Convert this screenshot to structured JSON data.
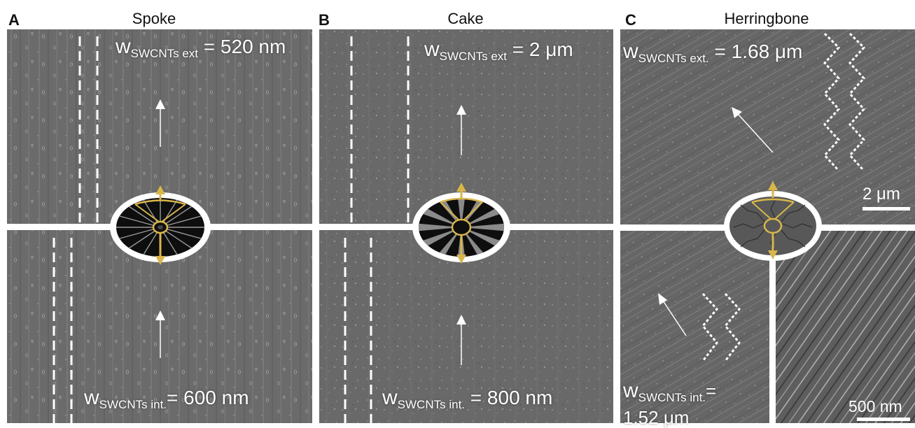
{
  "panels": [
    {
      "letter": "A",
      "title": "Spoke",
      "ext_prefix": "w",
      "ext_sub": "SWCNTs ext",
      "ext_value": "= 520 nm",
      "int_prefix": "w",
      "int_sub": "SWCNTs int.",
      "int_value": "= 600 nm"
    },
    {
      "letter": "B",
      "title": "Cake",
      "ext_prefix": "w",
      "ext_sub": "SWCNTs ext",
      "ext_value": "= 2 μm",
      "int_prefix": "w",
      "int_sub": "SWCNTs int.",
      "int_value": "= 800 nm"
    },
    {
      "letter": "C",
      "title": "Herringbone",
      "ext_prefix": "w",
      "ext_sub": "SWCNTs ext.",
      "ext_value": "= 1.68 μm",
      "int_prefix": "w",
      "int_sub": "SWCNTs int.",
      "int_value": "=",
      "int_value_line2": "1.52 μm"
    }
  ],
  "scale_bars": {
    "top": "2 μm",
    "inset": "500 nm"
  },
  "icons": [
    "spoke-pattern-icon",
    "cake-pattern-icon",
    "herringbone-pattern-icon",
    "direction-arrow-icon"
  ],
  "colors": {
    "accent_gold": "#d8b64a",
    "divider": "#ffffff",
    "micrograph_base": "#6e6e6e"
  }
}
